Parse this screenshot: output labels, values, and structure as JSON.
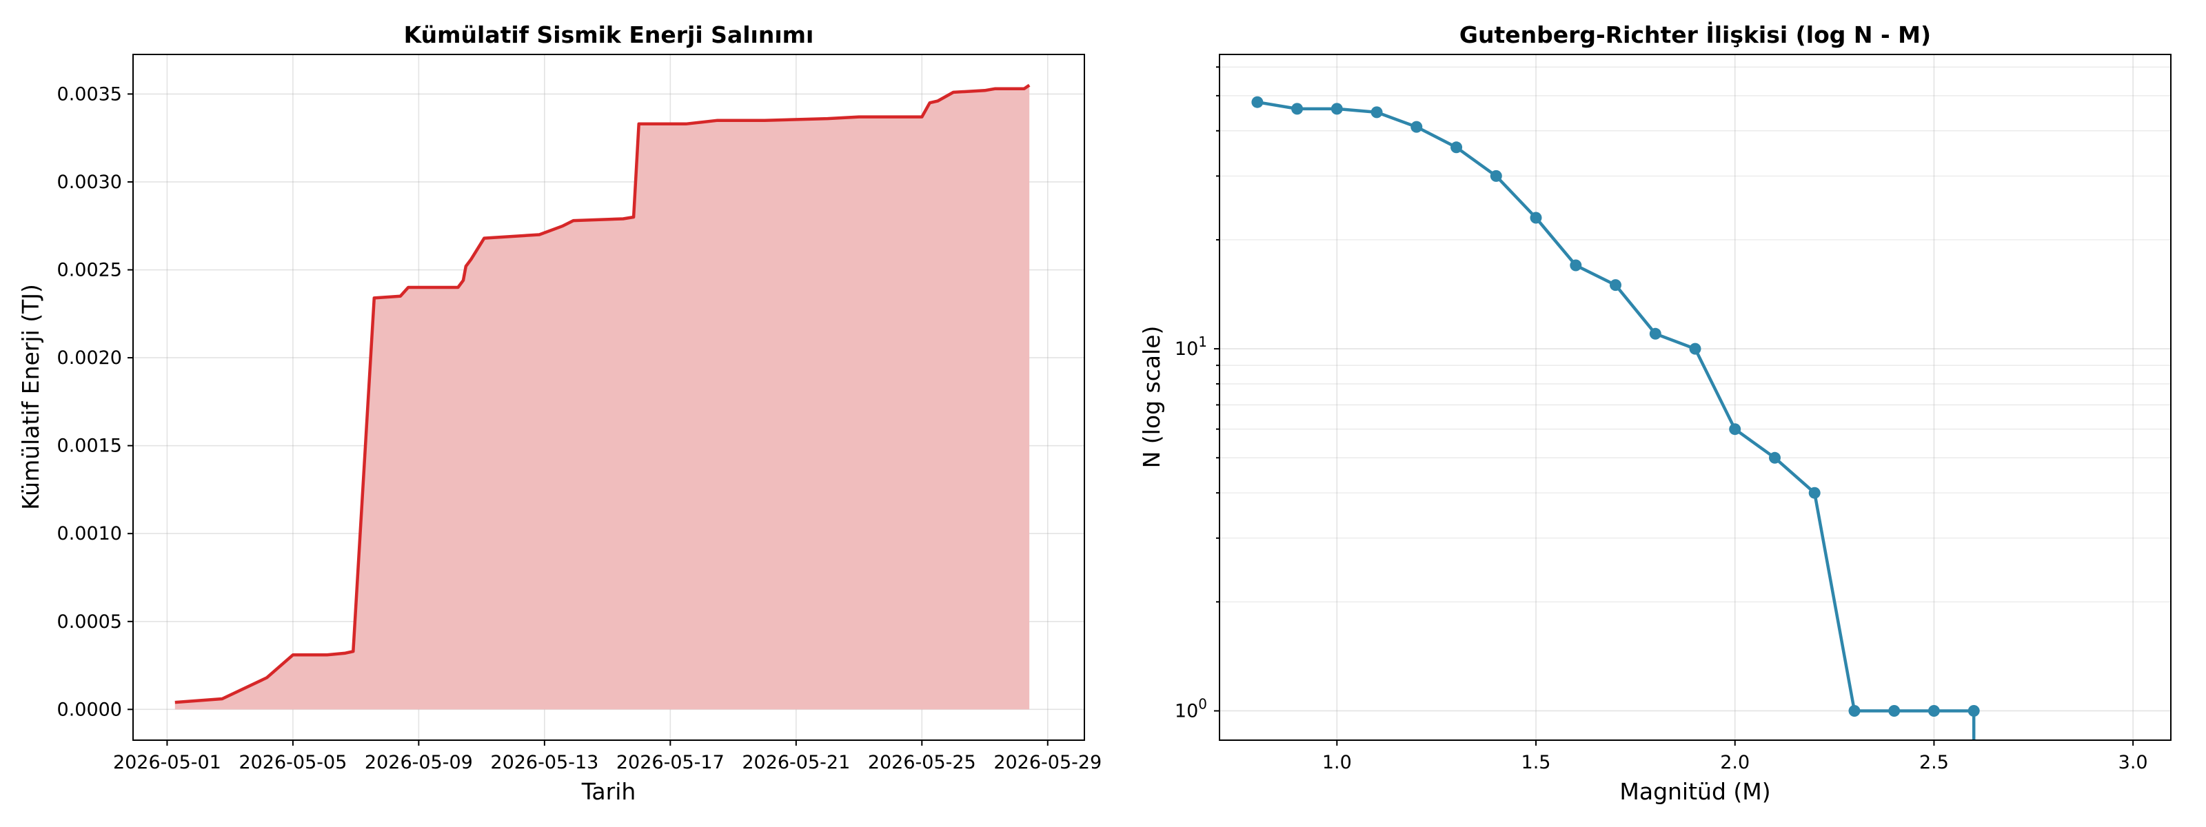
{
  "chart_data": [
    {
      "type": "area",
      "title": "Kümülatif Sismik Enerji Salınımı",
      "xlabel": "Tarih",
      "ylabel": "Kümülatif Enerji (TJ)",
      "x_ticks": [
        "2026-05-01",
        "2026-05-05",
        "2026-05-09",
        "2026-05-13",
        "2026-05-17",
        "2026-05-21",
        "2026-05-25",
        "2026-05-29"
      ],
      "y_ticks": [
        "0.0000",
        "0.0005",
        "0.0010",
        "0.0015",
        "0.0020",
        "0.0025",
        "0.0030",
        "0.0035"
      ],
      "xlim": [
        "2026-04-29 22:00",
        "2026-05-30 04:00"
      ],
      "ylim": [
        -0.000175,
        0.003725
      ],
      "grid": true,
      "line_color": "#d62728",
      "fill_color": "#f0bdbd",
      "series": [
        {
          "x": [
            "2026-05-01 06:00",
            "2026-05-02 18:00",
            "2026-05-04 04:00",
            "2026-05-05 00:00",
            "2026-05-06 02:00",
            "2026-05-06 16:00",
            "2026-05-06 22:00",
            "2026-05-07 14:00",
            "2026-05-08 10:00",
            "2026-05-08 16:00",
            "2026-05-10 06:00",
            "2026-05-10 10:00",
            "2026-05-10 12:00",
            "2026-05-10 16:00",
            "2026-05-11 02:00",
            "2026-05-12 20:00",
            "2026-05-13 14:00",
            "2026-05-13 22:00",
            "2026-05-15 12:00",
            "2026-05-15 20:00",
            "2026-05-16 00:00",
            "2026-05-17 12:00",
            "2026-05-18 12:00",
            "2026-05-20 00:00",
            "2026-05-22 00:00",
            "2026-05-23 00:00",
            "2026-05-25 00:00",
            "2026-05-25 06:00",
            "2026-05-25 12:00",
            "2026-05-26 00:00",
            "2026-05-27 00:00",
            "2026-05-27 08:00",
            "2026-05-28 06:00",
            "2026-05-28 10:00"
          ],
          "y": [
            4e-05,
            6e-05,
            0.00018,
            0.00031,
            0.00031,
            0.00032,
            0.00033,
            0.00234,
            0.00235,
            0.0024,
            0.0024,
            0.00244,
            0.00252,
            0.00256,
            0.00268,
            0.0027,
            0.00275,
            0.00278,
            0.00279,
            0.0028,
            0.00333,
            0.00333,
            0.00335,
            0.00335,
            0.00336,
            0.00337,
            0.00337,
            0.00345,
            0.00346,
            0.00351,
            0.00352,
            0.00353,
            0.00353,
            0.00355
          ]
        }
      ]
    },
    {
      "type": "line",
      "title": "Gutenberg-Richter İlişkisi (log N - M)",
      "xlabel": "Magnitüd (M)",
      "ylabel": "N (log scale)",
      "x_ticks": [
        "1.0",
        "1.5",
        "2.0",
        "2.5",
        "3.0"
      ],
      "y_ticks": [
        {
          "base": "10",
          "exp": "0",
          "value": 1
        },
        {
          "base": "10",
          "exp": "1",
          "value": 10
        }
      ],
      "y_scale": "log",
      "xlim": [
        0.705,
        3.095
      ],
      "ylim": [
        0.83,
        65
      ],
      "grid": true,
      "line_color": "#2e86ab",
      "marker": "circle",
      "series": [
        {
          "x": [
            0.8,
            0.9,
            1.0,
            1.1,
            1.2,
            1.3,
            1.4,
            1.5,
            1.6,
            1.7,
            1.8,
            1.9,
            2.0,
            2.1,
            2.2,
            2.3,
            2.4,
            2.5,
            2.6
          ],
          "y": [
            48,
            46,
            46,
            45,
            41,
            36,
            30,
            23,
            17,
            15,
            11,
            10,
            6,
            5,
            4,
            1,
            1,
            1,
            1
          ]
        }
      ]
    }
  ]
}
